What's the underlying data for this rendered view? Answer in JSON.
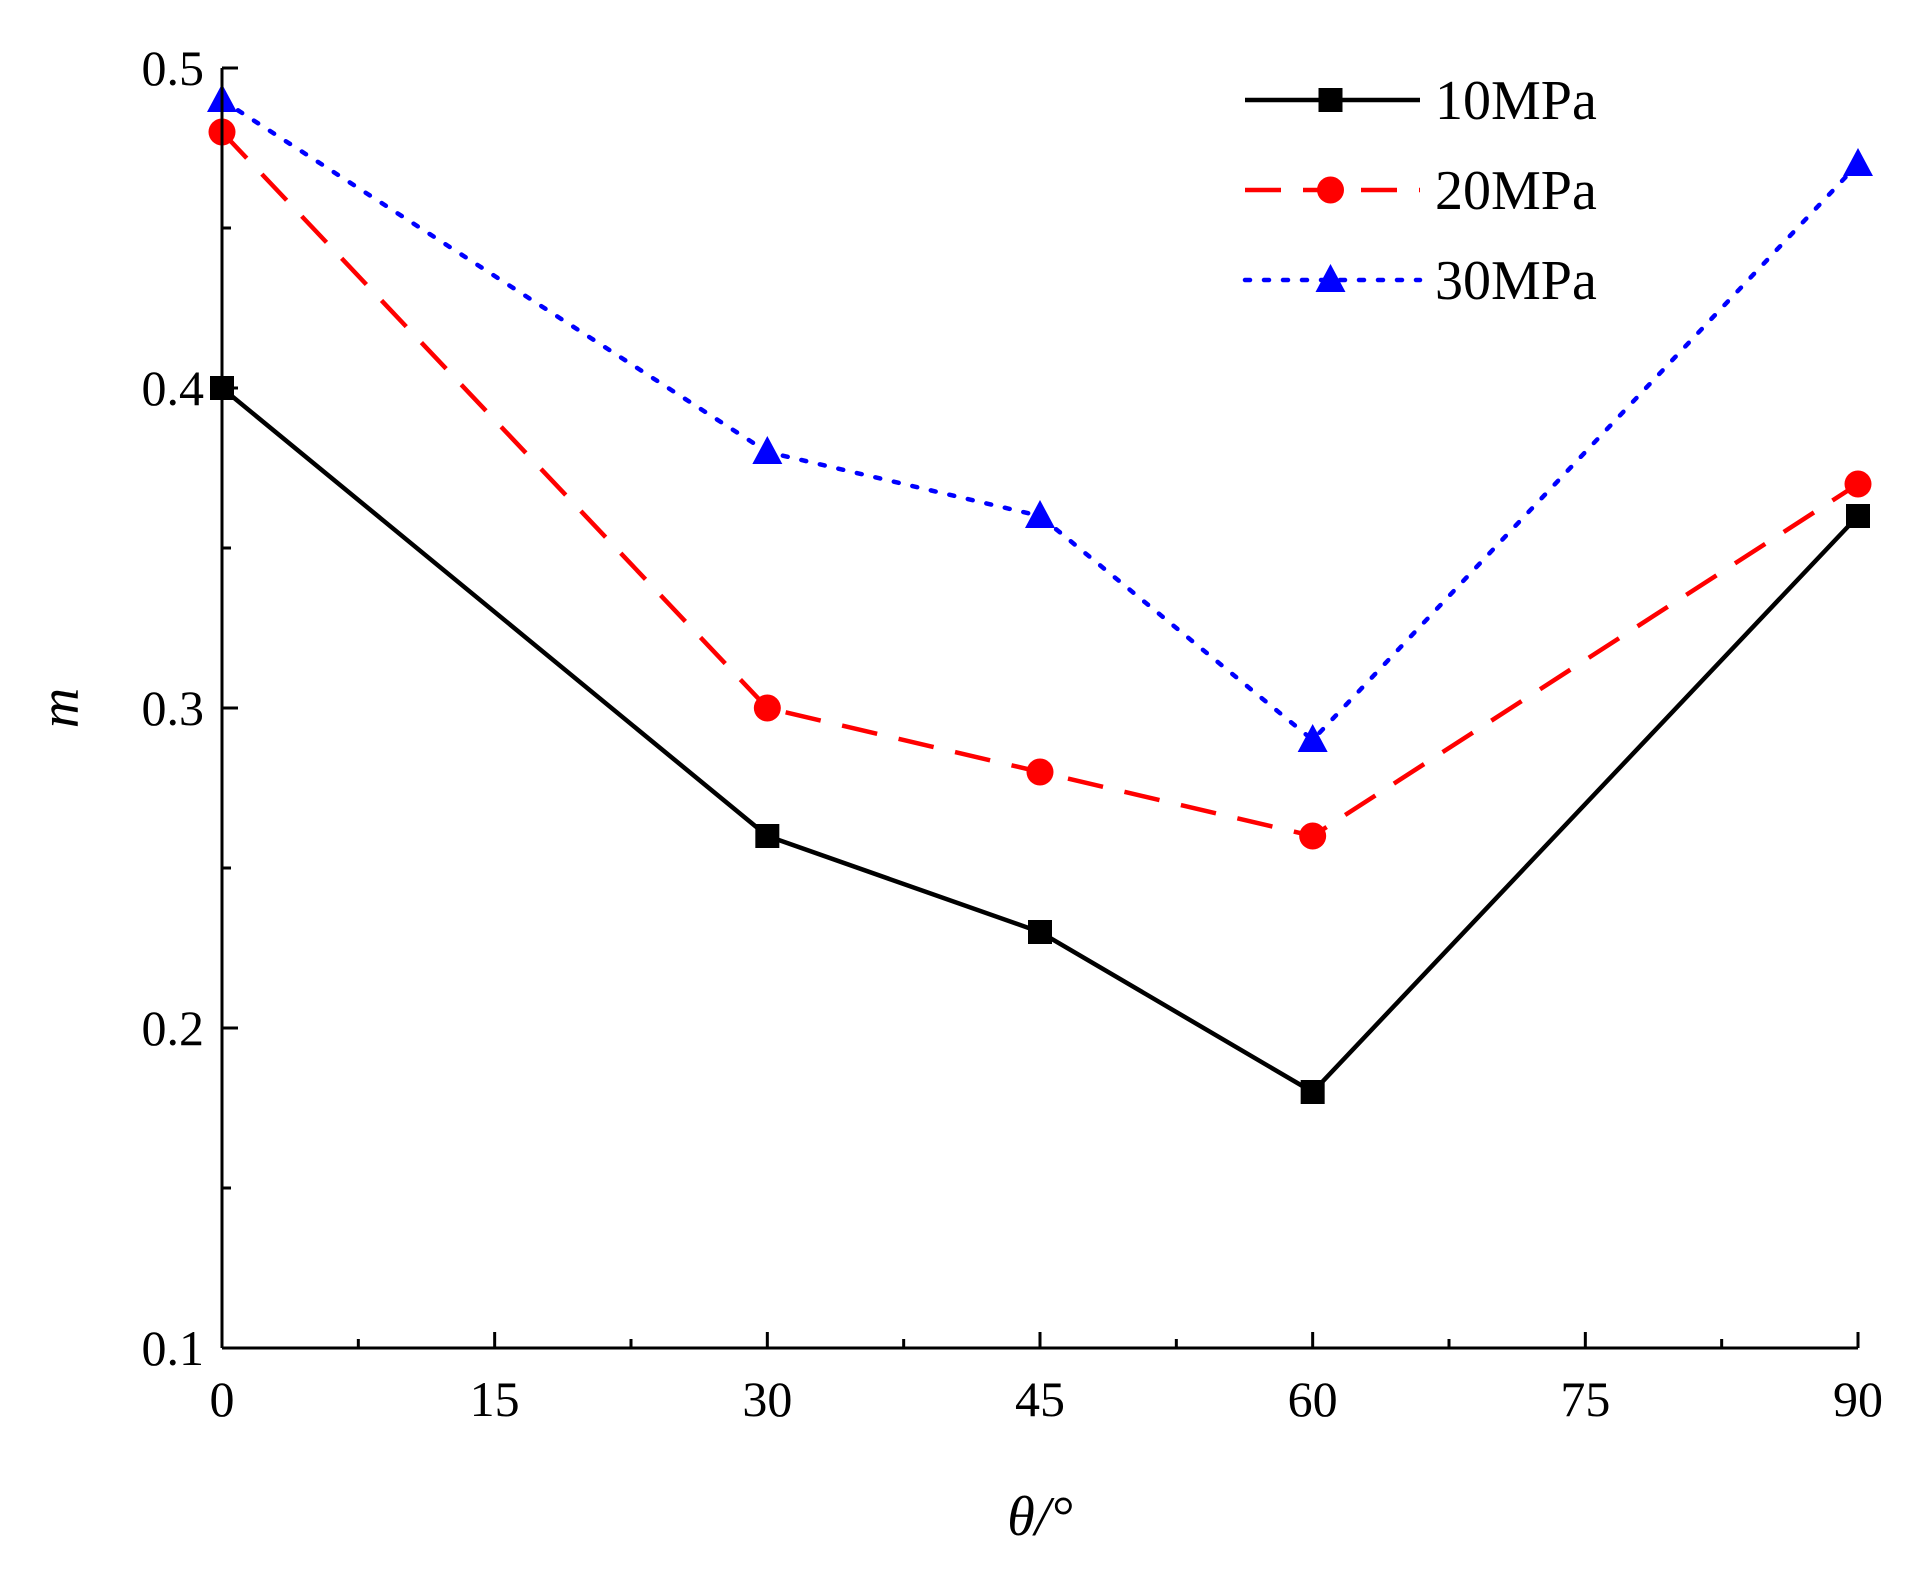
{
  "chart_data": {
    "type": "line",
    "xlabel": "θ/°",
    "ylabel": "m",
    "xlim": [
      0,
      90
    ],
    "ylim": [
      0.1,
      0.5
    ],
    "xticks": [
      "0",
      "15",
      "30",
      "45",
      "60",
      "75",
      "90"
    ],
    "yticks": [
      "0.1",
      "0.2",
      "0.3",
      "0.4",
      "0.5"
    ],
    "grid": false,
    "legend_position": "top-right",
    "x": [
      0,
      30,
      45,
      60,
      90
    ],
    "series": [
      {
        "name": "10MPa",
        "values": [
          0.4,
          0.26,
          0.23,
          0.18,
          0.36
        ],
        "color": "#000000",
        "marker": "square",
        "line_style": "solid"
      },
      {
        "name": "20MPa",
        "values": [
          0.48,
          0.3,
          0.28,
          0.26,
          0.37
        ],
        "color": "#ff0000",
        "marker": "circle",
        "line_style": "dashed"
      },
      {
        "name": "30MPa",
        "values": [
          0.49,
          0.38,
          0.36,
          0.29,
          0.47
        ],
        "color": "#0000ff",
        "marker": "triangle",
        "line_style": "dotted"
      }
    ]
  }
}
